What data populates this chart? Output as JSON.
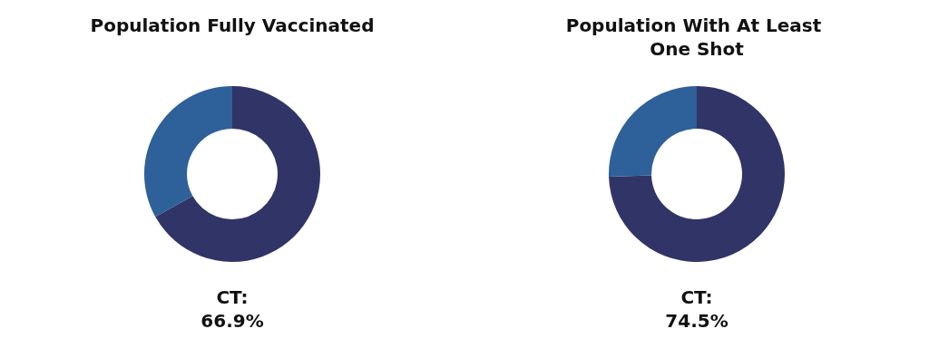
{
  "chart_data": [
    {
      "type": "donut",
      "title": "Population Fully Vaccinated",
      "categories": [
        null,
        null
      ],
      "values": [
        66.9,
        33.1
      ],
      "colors": [
        "#303467",
        "#2e6099"
      ],
      "annotations": [
        "CT:\n66.9%"
      ]
    },
    {
      "type": "donut",
      "title": "Population With At Least One Shot",
      "categories": [
        null,
        null
      ],
      "values": [
        74.5,
        25.5
      ],
      "colors": [
        "#303467",
        "#2e6099"
      ],
      "annotations": [
        "CT:\n74.5%"
      ]
    }
  ]
}
